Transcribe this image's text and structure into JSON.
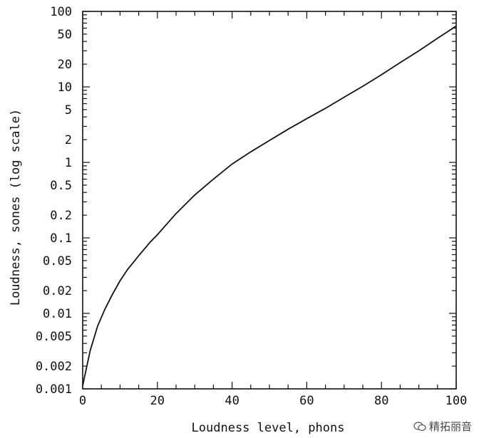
{
  "chart_data": {
    "type": "line",
    "xlabel": "Loudness level, phons",
    "ylabel": "Loudness, sones (log scale)",
    "xlim": [
      0,
      100
    ],
    "ylim": [
      0.001,
      100
    ],
    "yscale": "log",
    "x_ticks": [
      "0",
      "20",
      "40",
      "60",
      "80",
      "100"
    ],
    "x_tick_values": [
      0,
      20,
      40,
      60,
      80,
      100
    ],
    "y_ticks": [
      "0.001",
      "0.002",
      "0.005",
      "0.01",
      "0.02",
      "0.05",
      "0.1",
      "0.2",
      "0.5",
      "1",
      "2",
      "5",
      "10",
      "20",
      "50",
      "100"
    ],
    "y_tick_values": [
      0.001,
      0.002,
      0.005,
      0.01,
      0.02,
      0.05,
      0.1,
      0.2,
      0.5,
      1,
      2,
      5,
      10,
      20,
      50,
      100
    ],
    "grid": false,
    "legend": "none",
    "series": [
      {
        "x": [
          0,
          2,
          4,
          6,
          8,
          10,
          12,
          15,
          18,
          20,
          25,
          30,
          35,
          40,
          45,
          50,
          55,
          60,
          65,
          70,
          75,
          80,
          85,
          90,
          95,
          100
        ],
        "y": [
          0.0011,
          0.0032,
          0.0068,
          0.0115,
          0.018,
          0.027,
          0.038,
          0.058,
          0.087,
          0.11,
          0.21,
          0.37,
          0.6,
          0.95,
          1.38,
          1.95,
          2.75,
          3.8,
          5.2,
          7.3,
          10.2,
          14.5,
          21,
          30,
          44,
          64
        ]
      }
    ]
  },
  "watermark": {
    "text": "精拓丽音",
    "icon": "wechat-icon"
  }
}
